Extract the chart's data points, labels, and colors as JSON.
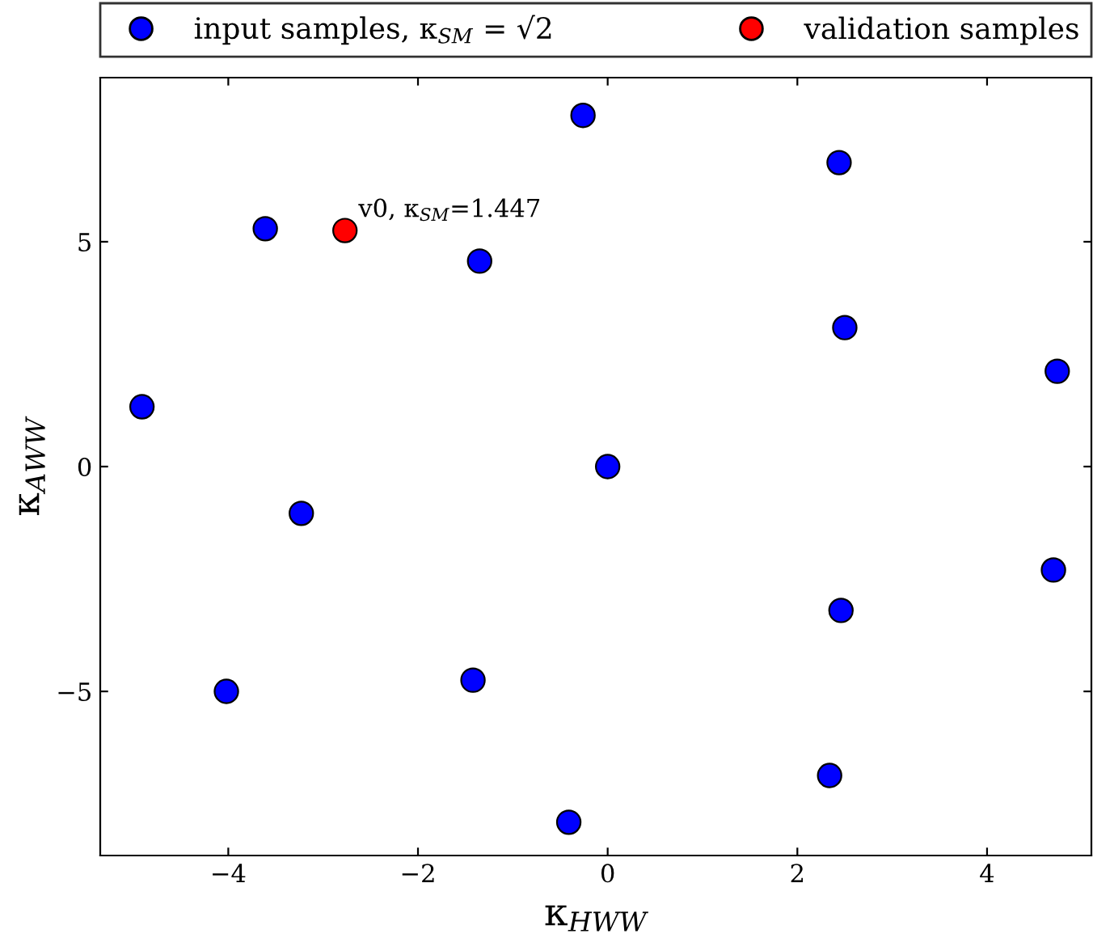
{
  "chart_data": {
    "type": "scatter",
    "xlabel": "κ$_{HWW}$",
    "ylabel": "κ$_{AWW}$",
    "xlim": [
      -5.35,
      5.1
    ],
    "ylim": [
      -8.65,
      8.65
    ],
    "xticks": [
      -4,
      -2,
      0,
      2,
      4
    ],
    "yticks": [
      -5,
      0,
      5
    ],
    "grid": false,
    "legend": "top",
    "marker": "circle",
    "series": [
      {
        "name": "input samples, κ$_{SM}$ = √2",
        "color": "#0000ff",
        "x": [
          -0.26,
          2.44,
          -3.61,
          -1.35,
          2.5,
          4.74,
          -4.91,
          0,
          -3.23,
          4.7,
          2.46,
          -1.42,
          -4.02,
          2.34,
          -0.41
        ],
        "values": [
          7.81,
          6.76,
          5.29,
          4.57,
          3.09,
          2.12,
          1.33,
          0,
          -1.04,
          -2.3,
          -3.2,
          -4.75,
          -5.0,
          -6.87,
          -7.91
        ]
      },
      {
        "name": "validation samples",
        "color": "#ff0000",
        "x": [
          -2.77
        ],
        "values": [
          5.25
        ]
      }
    ],
    "annotations": [
      {
        "text": "v0, κ$_{SM}$=1.447",
        "x": -2.77,
        "y": 5.25
      }
    ]
  }
}
